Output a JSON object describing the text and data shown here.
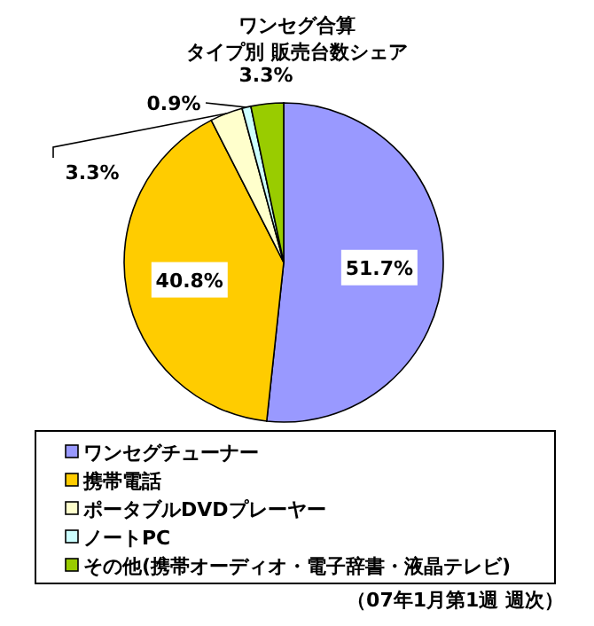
{
  "chart_data": {
    "type": "pie",
    "title": "ワンセグ合算",
    "subtitle": "タイプ別 販売台数シェア",
    "categories": [
      "ワンセグチューナー",
      "携帯電話",
      "ポータブルDVDプレーヤー",
      "ノートPC",
      "その他(携帯オーディオ・電子辞書・液晶テレビ)"
    ],
    "values": [
      51.7,
      40.8,
      3.3,
      0.9,
      3.3
    ],
    "colors": [
      "#9999ff",
      "#ffcc00",
      "#ffffcc",
      "#ccffff",
      "#99cc00"
    ],
    "value_labels": [
      "51.7%",
      "40.8%",
      "3.3%",
      "0.9%",
      "3.3%"
    ],
    "legend": "bottom",
    "annotations": [
      "（07年1月第1週 週次）"
    ]
  }
}
